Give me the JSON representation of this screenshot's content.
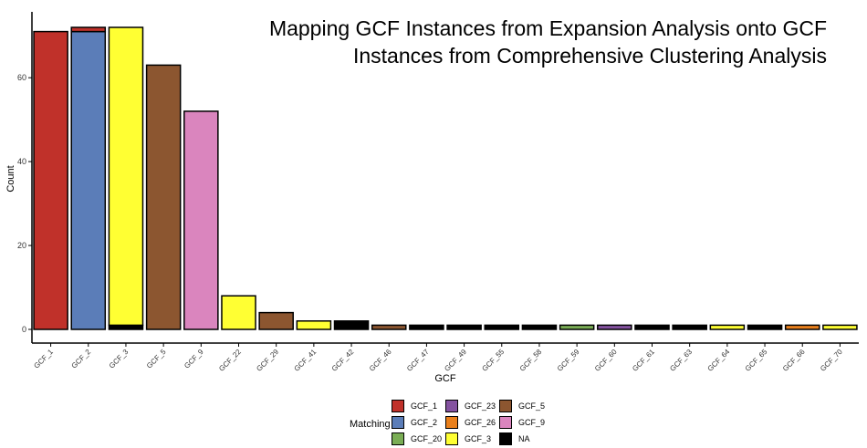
{
  "chart_data": {
    "type": "bar",
    "stacked": true,
    "title_lines": [
      "Mapping GCF Instances from Expansion Analysis onto GCF",
      "Instances from Comprehensive Clustering Analysis"
    ],
    "xlabel": "GCF",
    "ylabel": "Count",
    "ylim": [
      0,
      72
    ],
    "yticks": [
      0,
      20,
      40,
      60
    ],
    "grid": false,
    "legend_position": "bottom",
    "legend_title": "Matching",
    "categories": [
      "GCF_1",
      "GCF_2",
      "GCF_3",
      "GCF_5",
      "GCF_9",
      "GCF_22",
      "GCF_29",
      "GCF_41",
      "GCF_42",
      "GCF_46",
      "GCF_47",
      "GCF_49",
      "GCF_55",
      "GCF_58",
      "GCF_59",
      "GCF_60",
      "GCF_61",
      "GCF_63",
      "GCF_64",
      "GCF_65",
      "GCF_66",
      "GCF_70"
    ],
    "series": [
      {
        "name": "GCF_1",
        "color": "#C0312A",
        "values": [
          71,
          1,
          0,
          0,
          0,
          0,
          0,
          0,
          0,
          0,
          0,
          0,
          0,
          0,
          0,
          0,
          0,
          0,
          0,
          0,
          0,
          0
        ]
      },
      {
        "name": "GCF_2",
        "color": "#5B7DB8",
        "values": [
          0,
          71,
          0,
          0,
          0,
          0,
          0,
          0,
          0,
          0,
          0,
          0,
          0,
          0,
          0,
          0,
          0,
          0,
          0,
          0,
          0,
          0
        ]
      },
      {
        "name": "GCF_20",
        "color": "#7AAD55",
        "values": [
          0,
          0,
          0,
          0,
          0,
          0,
          0,
          0,
          0,
          0,
          0,
          0,
          0,
          0,
          1,
          0,
          0,
          0,
          0,
          0,
          0,
          0
        ]
      },
      {
        "name": "GCF_23",
        "color": "#8452A0",
        "values": [
          0,
          0,
          0,
          0,
          0,
          0,
          0,
          0,
          0,
          0,
          0,
          0,
          0,
          0,
          0,
          1,
          0,
          0,
          0,
          0,
          0,
          0
        ]
      },
      {
        "name": "GCF_26",
        "color": "#EA801C",
        "values": [
          0,
          0,
          0,
          0,
          0,
          0,
          0,
          0,
          0,
          0,
          0,
          0,
          0,
          0,
          0,
          0,
          0,
          0,
          0,
          0,
          1,
          0
        ]
      },
      {
        "name": "GCF_3",
        "color": "#FFFF33",
        "values": [
          0,
          0,
          71,
          0,
          0,
          8,
          0,
          2,
          0,
          0,
          0,
          0,
          0,
          0,
          0,
          0,
          0,
          0,
          1,
          0,
          0,
          1
        ]
      },
      {
        "name": "GCF_5",
        "color": "#8C5630",
        "values": [
          0,
          0,
          0,
          63,
          0,
          0,
          4,
          0,
          0,
          1,
          0,
          0,
          0,
          0,
          0,
          0,
          0,
          0,
          0,
          0,
          0,
          0
        ]
      },
      {
        "name": "GCF_9",
        "color": "#DA85BE",
        "values": [
          0,
          0,
          0,
          0,
          52,
          0,
          0,
          0,
          0,
          0,
          0,
          0,
          0,
          0,
          0,
          0,
          0,
          0,
          0,
          0,
          0,
          0
        ]
      },
      {
        "name": "NA",
        "color": "#000000",
        "values": [
          0,
          0,
          1,
          0,
          0,
          0,
          0,
          0,
          2,
          0,
          1,
          1,
          1,
          1,
          0,
          0,
          1,
          1,
          0,
          1,
          0,
          0
        ]
      }
    ],
    "stack_order": [
      "NA",
      "GCF_3",
      "GCF_2",
      "GCF_1",
      "GCF_5",
      "GCF_9",
      "GCF_20",
      "GCF_23",
      "GCF_26"
    ]
  },
  "legend": {
    "columns": [
      [
        "GCF_1",
        "GCF_2",
        "GCF_20"
      ],
      [
        "GCF_23",
        "GCF_26",
        "GCF_3"
      ],
      [
        "GCF_5",
        "GCF_9",
        "NA"
      ]
    ]
  }
}
